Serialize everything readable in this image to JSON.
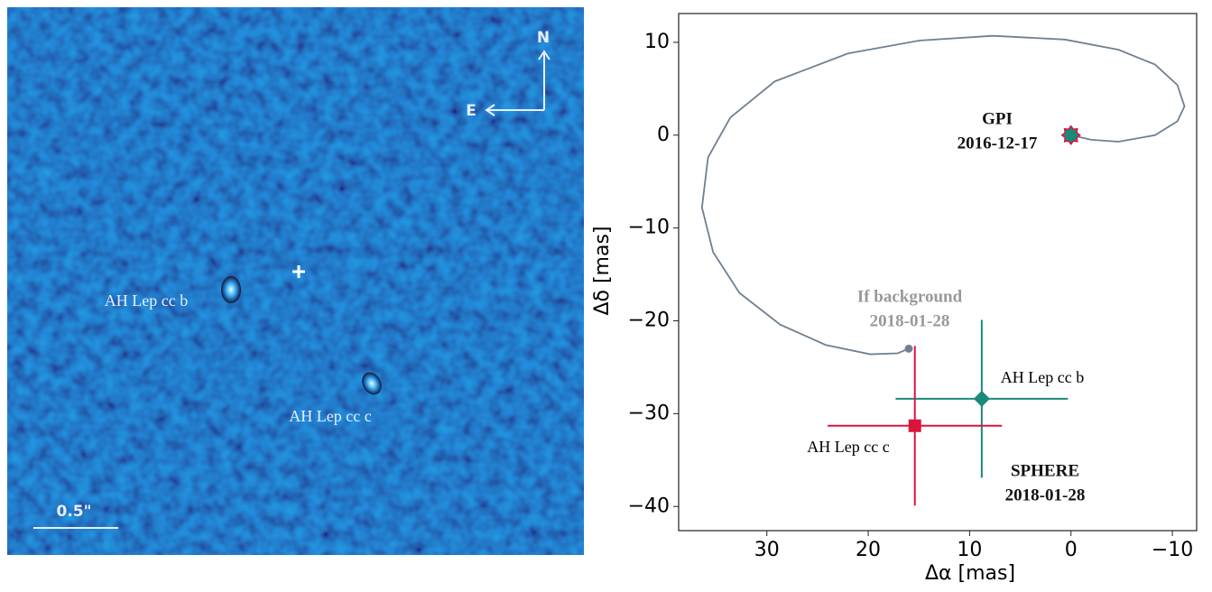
{
  "image_panel": {
    "labels": [
      "AH Lep cc b",
      "AH Lep cc c"
    ],
    "north": "N",
    "east": "E",
    "scale_bar": "0.5\""
  },
  "chart_data": {
    "type": "scatter",
    "xlabel": "Δα [mas]",
    "ylabel": "Δδ [mas]",
    "xlim": [
      38.7,
      -12.4
    ],
    "ylim": [
      -42.6,
      13.1
    ],
    "xticks": [
      30,
      20,
      10,
      0,
      {
        "value": -10,
        "label": "−10"
      }
    ],
    "yticks": [
      10,
      0,
      {
        "value": -10,
        "label": "−10"
      },
      {
        "value": -20,
        "label": "−20"
      },
      {
        "value": -30,
        "label": "−30"
      },
      {
        "value": -40,
        "label": "−40"
      }
    ],
    "track": {
      "color": "#708090",
      "x": [
        0,
        -2.0,
        -4.7,
        -8.3,
        -10.5,
        -11.2,
        -10.5,
        -8.3,
        -4.7,
        0.6,
        7.7,
        14.9,
        22,
        29.2,
        33.6,
        35.8,
        36.4,
        35.3,
        32.7,
        28.7,
        24.2,
        19.8,
        17.1,
        16.0
      ],
      "values": [
        0,
        -0.5,
        -0.7,
        0,
        1.5,
        3.1,
        5.4,
        7.6,
        9.2,
        10.3,
        10.7,
        10.2,
        8.8,
        5.8,
        1.9,
        -2.4,
        -7.8,
        -12.6,
        -17,
        -20.4,
        -22.6,
        -23.6,
        -23.5,
        -23.0
      ]
    },
    "reference_point": {
      "x": 0,
      "y": 0,
      "color": "#1a8a7a",
      "edge_color": "#dc143c"
    },
    "series": [
      {
        "name": "AH Lep cc b",
        "color": "#1a8a7a",
        "marker": "diamond",
        "x": [
          8.8
        ],
        "values": [
          -28.4
        ],
        "xerr": [
          8.5
        ],
        "yerr": [
          8.5
        ]
      },
      {
        "name": "AH Lep cc c",
        "color": "#dc143c",
        "marker": "square",
        "x": [
          15.4
        ],
        "values": [
          -31.3
        ],
        "xerr": [
          8.6
        ],
        "yerr": [
          8.6
        ]
      }
    ],
    "annotations": [
      {
        "lines": [
          "GPI",
          "2016-12-17"
        ],
        "color": "#111111"
      },
      {
        "lines": [
          "If background",
          "2018-01-28"
        ],
        "color": "#999999"
      },
      {
        "lines": [
          "SPHERE",
          "2018-01-28"
        ],
        "color": "#111111"
      }
    ]
  }
}
